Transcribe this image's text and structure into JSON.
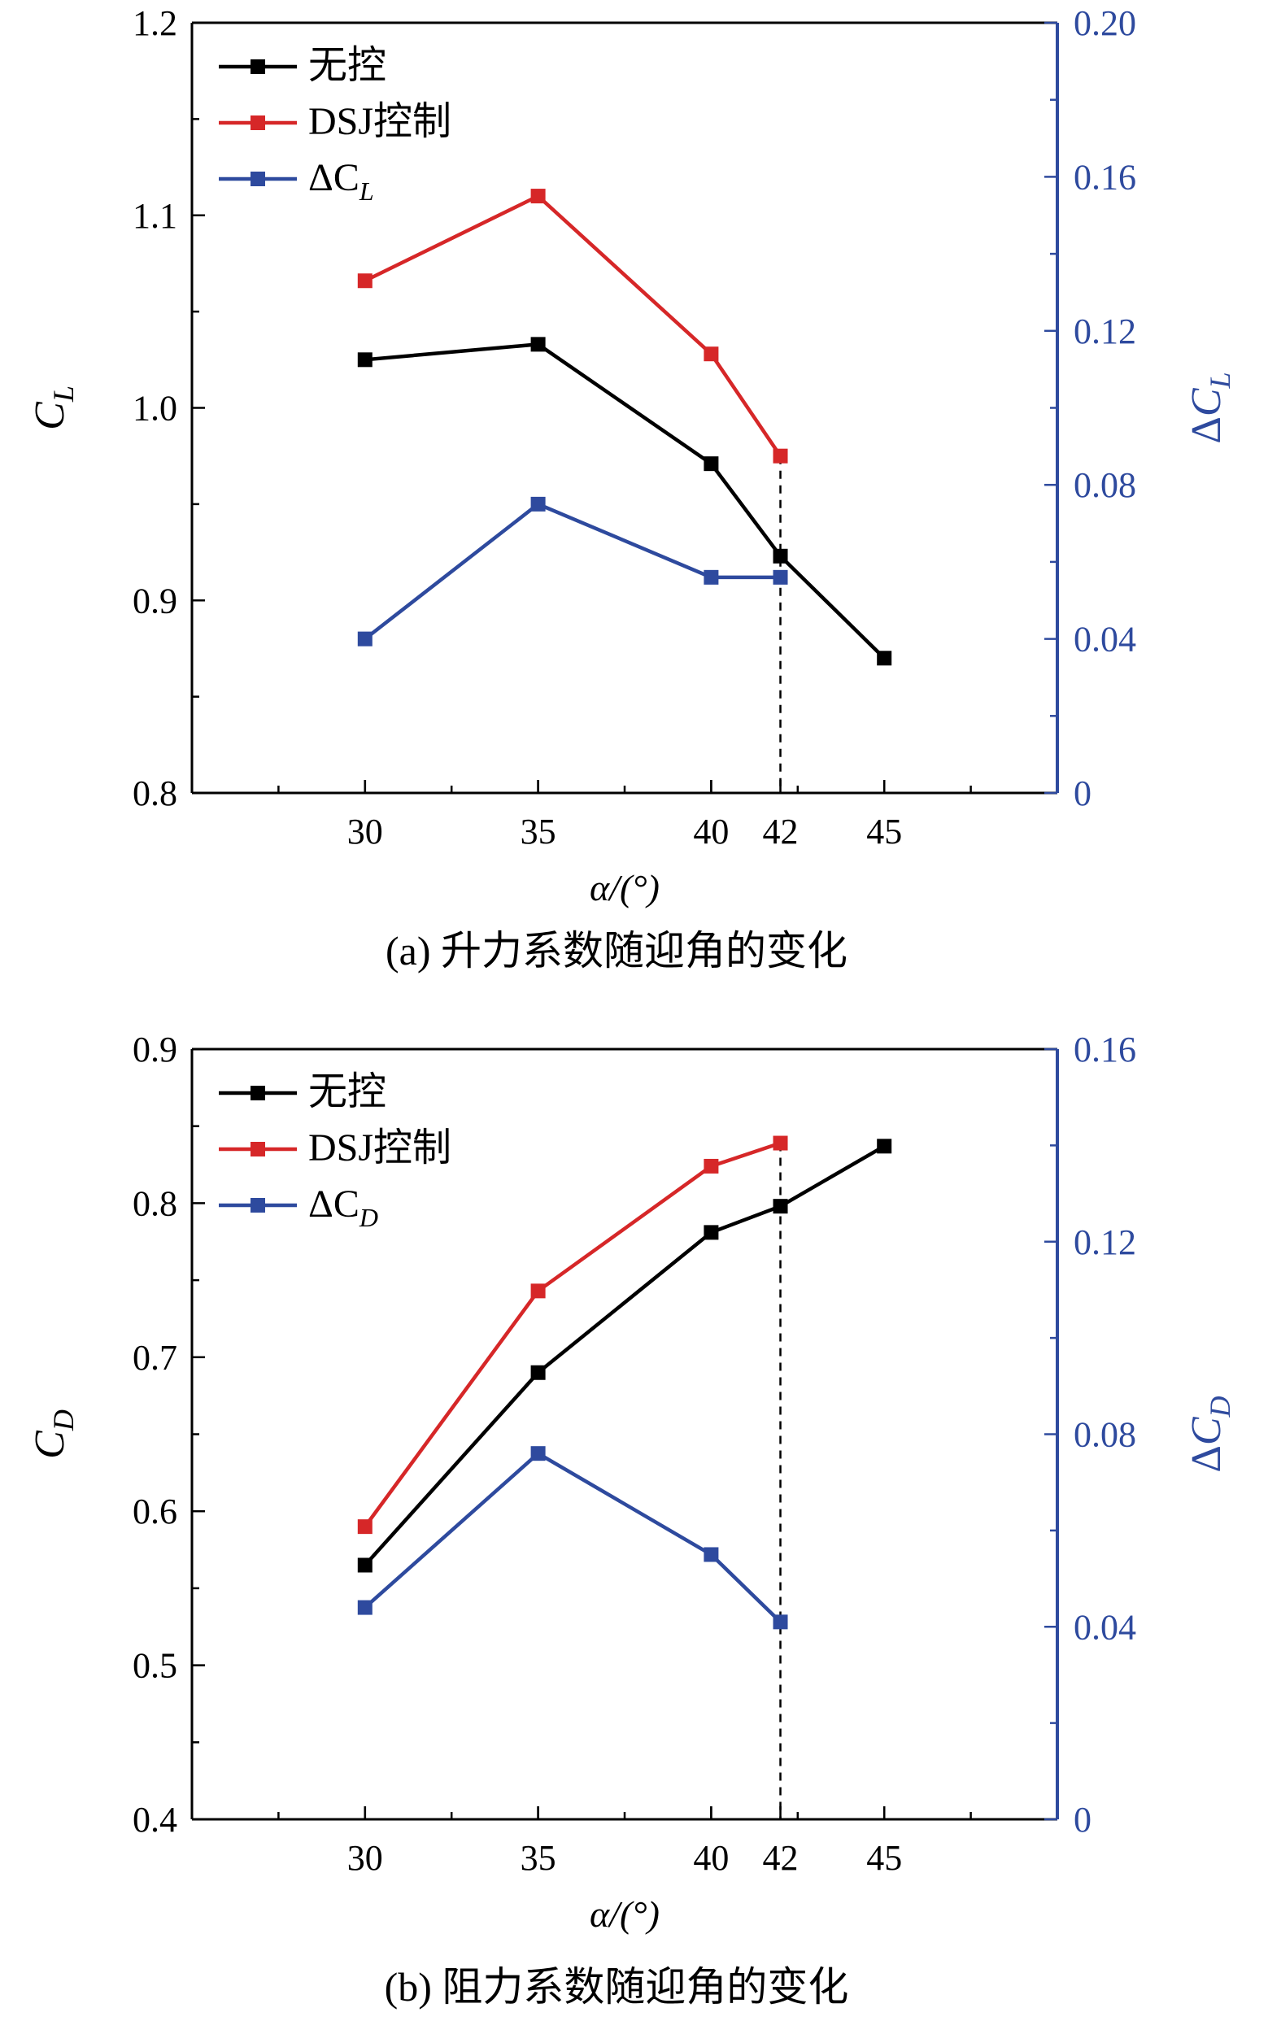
{
  "chart_data": [
    {
      "type": "line",
      "caption": "(a) 升力系数随迎角的变化",
      "xlabel": "α/(°)",
      "xlim": [
        25,
        50
      ],
      "xticks": [
        30,
        35,
        40,
        42,
        45
      ],
      "ylabel_left": {
        "base": "C",
        "sub": "L"
      },
      "ylim_left": [
        0.8,
        1.2
      ],
      "yticks_left": [
        "0.8",
        "0.9",
        "1.0",
        "1.1",
        "1.2"
      ],
      "ylabel_right": {
        "prefix": "Δ",
        "base": "C",
        "sub": "L"
      },
      "ylim_right": [
        0,
        0.2
      ],
      "yticks_right": [
        "0",
        "0.04",
        "0.08",
        "0.12",
        "0.16",
        "0.20"
      ],
      "right_axis_color": "#2e4a9e",
      "reference_line_x": 42,
      "legend_position": "top-left",
      "series": [
        {
          "name": "无控",
          "color": "#000000",
          "axis": "left",
          "x": [
            30,
            35,
            40,
            42,
            45
          ],
          "y": [
            1.025,
            1.033,
            0.971,
            0.923,
            0.87
          ]
        },
        {
          "name": "DSJ控制",
          "color": "#d62728",
          "axis": "left",
          "x": [
            30,
            35,
            40,
            42
          ],
          "y": [
            1.066,
            1.11,
            1.028,
            0.975
          ]
        },
        {
          "name": "ΔC",
          "name_sub": "L",
          "color": "#2e4a9e",
          "axis": "right",
          "x": [
            30,
            35,
            40,
            42
          ],
          "y": [
            0.04,
            0.075,
            0.056,
            0.056
          ]
        }
      ]
    },
    {
      "type": "line",
      "caption": "(b) 阻力系数随迎角的变化",
      "xlabel": "α/(°)",
      "xlim": [
        25,
        50
      ],
      "xticks": [
        30,
        35,
        40,
        42,
        45
      ],
      "ylabel_left": {
        "base": "C",
        "sub": "D"
      },
      "ylim_left": [
        0.4,
        0.9
      ],
      "yticks_left": [
        "0.4",
        "0.5",
        "0.6",
        "0.7",
        "0.8",
        "0.9"
      ],
      "ylabel_right": {
        "prefix": "Δ",
        "base": "C",
        "sub": "D"
      },
      "ylim_right": [
        0,
        0.16
      ],
      "yticks_right": [
        "0",
        "0.04",
        "0.08",
        "0.12",
        "0.16"
      ],
      "right_axis_color": "#2e4a9e",
      "reference_line_x": 42,
      "legend_position": "top-left",
      "series": [
        {
          "name": "无控",
          "color": "#000000",
          "axis": "left",
          "x": [
            30,
            35,
            40,
            42,
            45
          ],
          "y": [
            0.565,
            0.69,
            0.781,
            0.798,
            0.837
          ]
        },
        {
          "name": "DSJ控制",
          "color": "#d62728",
          "axis": "left",
          "x": [
            30,
            35,
            40,
            42
          ],
          "y": [
            0.59,
            0.743,
            0.824,
            0.839
          ]
        },
        {
          "name": "ΔC",
          "name_sub": "D",
          "color": "#2e4a9e",
          "axis": "right",
          "x": [
            30,
            35,
            40,
            42
          ],
          "y": [
            0.044,
            0.076,
            0.055,
            0.041
          ]
        }
      ]
    }
  ]
}
